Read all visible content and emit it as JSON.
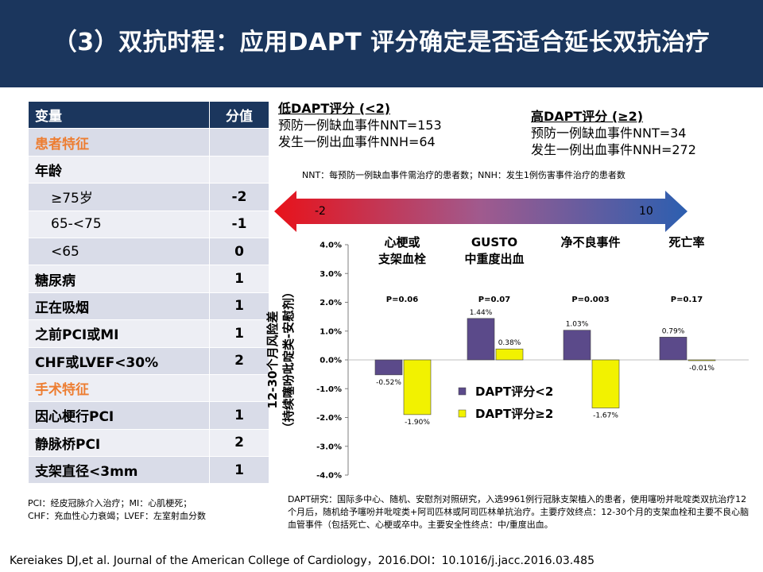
{
  "title": "（3）双抗时程：应用DAPT 评分确定是否适合延长双抗治疗",
  "table": {
    "header": [
      "变量",
      "分值"
    ],
    "rows": [
      {
        "label": "患者特征",
        "score": "",
        "section": true
      },
      {
        "label": "年龄",
        "score": ""
      },
      {
        "label": "≥75岁",
        "score": "-2",
        "indent": true
      },
      {
        "label": "65-<75",
        "score": "-1",
        "indent": true
      },
      {
        "label": "<65",
        "score": "0",
        "indent": true
      },
      {
        "label": "糖尿病",
        "score": "1"
      },
      {
        "label": "正在吸烟",
        "score": "1"
      },
      {
        "label": "之前PCI或MI",
        "score": "1"
      },
      {
        "label": "CHF或LVEF<30%",
        "score": "2"
      },
      {
        "label": "手术特征",
        "score": "",
        "section": true
      },
      {
        "label": "因心梗行PCI",
        "score": "1"
      },
      {
        "label": "静脉桥PCI",
        "score": "2"
      },
      {
        "label": "支架直径<3mm",
        "score": "1"
      }
    ],
    "note_lines": [
      "PCI：经皮冠脉介入治疗；MI：心肌梗死；",
      "CHF：充血性心力衰竭；LVEF：左室射血分数"
    ]
  },
  "low_panel": {
    "heading": "低DAPT评分 (<2)",
    "lines": [
      "预防一例缺血事件NNT=153",
      "发生一例出血事件NNH=64"
    ]
  },
  "high_panel": {
    "heading": "高DAPT评分 (≥2)",
    "lines": [
      "预防一例缺血事件NNT=34",
      "发生一例出血事件NNH=272"
    ]
  },
  "nnt_note": "NNT：每预防一例缺血事件需治疗的患者数；NNH：发生1例伤害事件治疗的患者数",
  "arrow": {
    "left_label": "-2",
    "right_label": "10"
  },
  "chart_data": {
    "type": "bar",
    "categories": [
      [
        "心梗或",
        "支架血栓"
      ],
      [
        "GUSTO",
        "中重度出血"
      ],
      [
        "净不良事件"
      ],
      [
        "死亡率"
      ]
    ],
    "p_values": [
      "P=0.06",
      "P=0.07",
      "P=0.003",
      "P=0.17"
    ],
    "series": [
      {
        "name": "DAPT评分<2",
        "values": [
          -0.52,
          1.44,
          1.03,
          0.79
        ],
        "labels": [
          "-0.52%",
          "1.44%",
          "1.03%",
          "0.79%"
        ],
        "color": "#5b4a8a"
      },
      {
        "name": "DAPT评分≥2",
        "values": [
          -1.9,
          0.38,
          -1.67,
          -0.01
        ],
        "labels": [
          "-1.90%",
          "0.38%",
          "-1.67%",
          "-0.01%"
        ],
        "color": "#f2f200"
      }
    ],
    "ylim": [
      -4,
      4
    ],
    "yticks": [
      "4.0%",
      "3.0%",
      "2.0%",
      "1.0%",
      "0.0%",
      "-1.0%",
      "-2.0%",
      "-3.0%",
      "-4.0%"
    ],
    "ylabel_lines": [
      "12-30个月风险差",
      "（持续噻吩吡啶类-安慰剂）"
    ],
    "legend_position": "lower-center"
  },
  "study_note": "DAPT研究：国际多中心、随机、安慰剂对照研究，入选9961例行冠脉支架植入的患者，使用噻吩并吡啶类双抗治疗12个月后，随机给予噻吩并吡啶类+阿司匹林或阿司匹林单抗治疗。主要疗效终点：12-30个月的支架血栓和主要不良心脑血管事件（包括死亡、心梗或卒中。主要安全性终点：中/重度出血。",
  "citation": "Kereiakes DJ,et al. Journal of the American College of Cardiology，2016.DOI：10.1016/j.jacc.2016.03.485",
  "colors": {
    "header_bg": "#1b365d",
    "section_text": "#ed7d31",
    "bar_low": "#5b4a8a",
    "bar_high": "#f2f200"
  }
}
